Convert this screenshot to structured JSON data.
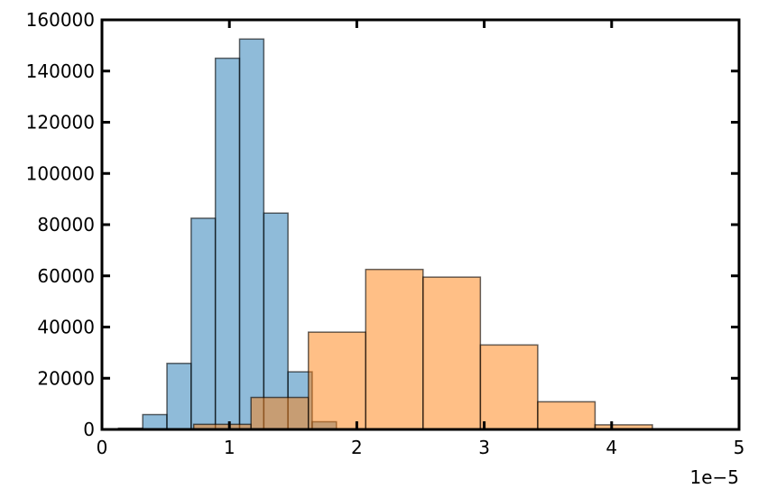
{
  "chart_data": {
    "type": "bar",
    "subtype": "histogram",
    "title": "",
    "xlabel": "",
    "ylabel": "",
    "x_offset_label": "1e−5",
    "xlim": [
      0,
      5
    ],
    "ylim": [
      0,
      160000
    ],
    "x_ticks": [
      0,
      1,
      2,
      3,
      4,
      5
    ],
    "x_tick_labels": [
      "0",
      "1",
      "2",
      "3",
      "4",
      "5"
    ],
    "y_ticks": [
      0,
      20000,
      40000,
      60000,
      80000,
      100000,
      120000,
      140000,
      160000
    ],
    "y_tick_labels": [
      "0",
      "20000",
      "40000",
      "60000",
      "80000",
      "100000",
      "120000",
      "140000",
      "160000"
    ],
    "grid": false,
    "series": [
      {
        "color": "#1f77b4",
        "opacity": 0.5,
        "edge_color": "#000000",
        "bins": [
          {
            "x0": 0.13,
            "x1": 0.32,
            "value": 500
          },
          {
            "x0": 0.32,
            "x1": 0.51,
            "value": 5800
          },
          {
            "x0": 0.51,
            "x1": 0.7,
            "value": 25800
          },
          {
            "x0": 0.7,
            "x1": 0.89,
            "value": 82500
          },
          {
            "x0": 0.89,
            "x1": 1.08,
            "value": 145000
          },
          {
            "x0": 1.08,
            "x1": 1.27,
            "value": 152500
          },
          {
            "x0": 1.27,
            "x1": 1.46,
            "value": 84500
          },
          {
            "x0": 1.46,
            "x1": 1.65,
            "value": 22500
          },
          {
            "x0": 1.65,
            "x1": 1.84,
            "value": 3000
          }
        ]
      },
      {
        "color": "#ff7f0e",
        "opacity": 0.5,
        "edge_color": "#000000",
        "bins": [
          {
            "x0": 0.72,
            "x1": 1.17,
            "value": 2000
          },
          {
            "x0": 1.17,
            "x1": 1.62,
            "value": 12500
          },
          {
            "x0": 1.62,
            "x1": 2.07,
            "value": 38000
          },
          {
            "x0": 2.07,
            "x1": 2.52,
            "value": 62500
          },
          {
            "x0": 2.52,
            "x1": 2.97,
            "value": 59500
          },
          {
            "x0": 2.97,
            "x1": 3.42,
            "value": 33000
          },
          {
            "x0": 3.42,
            "x1": 3.87,
            "value": 10800
          },
          {
            "x0": 3.87,
            "x1": 4.32,
            "value": 1800
          }
        ]
      }
    ]
  }
}
